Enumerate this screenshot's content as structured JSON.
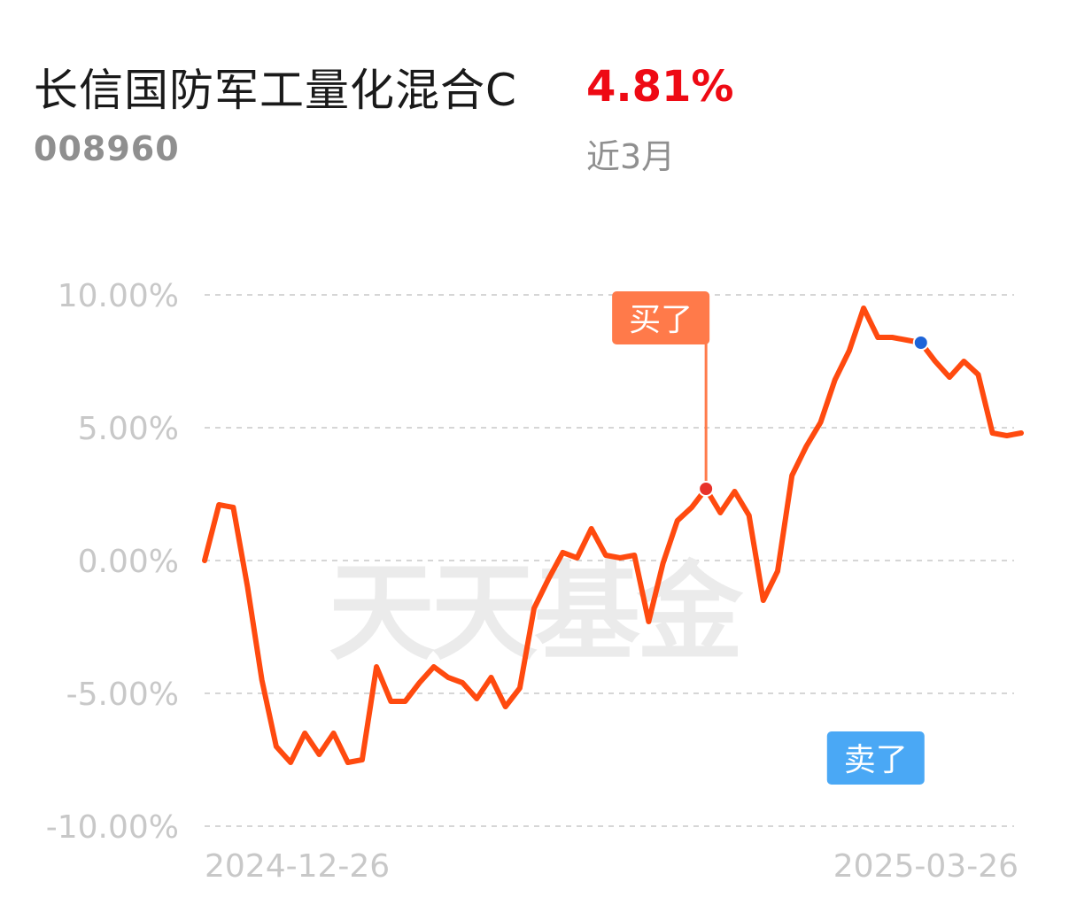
{
  "header": {
    "fund_name": "长信国防军工量化混合C",
    "fund_code": "008960",
    "return_value": "4.81%",
    "return_period": "近3月"
  },
  "colors": {
    "line": "#ff4a0f",
    "return_text": "#ee0a14",
    "buy": "#ff7a4a",
    "sell": "#4aa8f5",
    "grid": "#d6d6d6",
    "axis_text": "#c8c8c8",
    "watermark": "#ebebeb"
  },
  "watermark": "天天基金",
  "chart_data": {
    "type": "line",
    "x_start_label": "2024-12-26",
    "x_end_label": "2025-03-26",
    "y_ticks": [
      "10.00%",
      "5.00%",
      "0.00%",
      "-5.00%",
      "-10.00%"
    ],
    "ylim": [
      -10,
      10
    ],
    "grid": true,
    "series": [
      {
        "values": [
          0.0,
          2.1,
          2.0,
          -1.0,
          -4.5,
          -7.0,
          -7.6,
          -6.5,
          -7.3,
          -6.5,
          -7.6,
          -7.5,
          -4.0,
          -5.3,
          -5.3,
          -4.6,
          -4.0,
          -4.4,
          -4.6,
          -5.2,
          -4.4,
          -5.5,
          -4.8,
          -1.8,
          -0.7,
          0.3,
          0.1,
          1.2,
          0.2,
          0.1,
          0.2,
          -2.3,
          -0.1,
          1.5,
          2.0,
          2.7,
          1.8,
          2.6,
          1.7,
          -1.5,
          -0.4,
          3.2,
          4.3,
          5.2,
          6.8,
          7.9,
          9.5,
          8.4,
          8.4,
          8.3,
          8.2,
          7.5,
          6.9,
          7.5,
          7.0,
          4.8,
          4.7,
          4.8
        ]
      }
    ],
    "annotations": [
      {
        "label": "买了",
        "index": 35,
        "value": 2.7,
        "type": "buy"
      },
      {
        "label": "卖了",
        "index": 50,
        "value": 8.2,
        "type": "sell"
      }
    ]
  }
}
